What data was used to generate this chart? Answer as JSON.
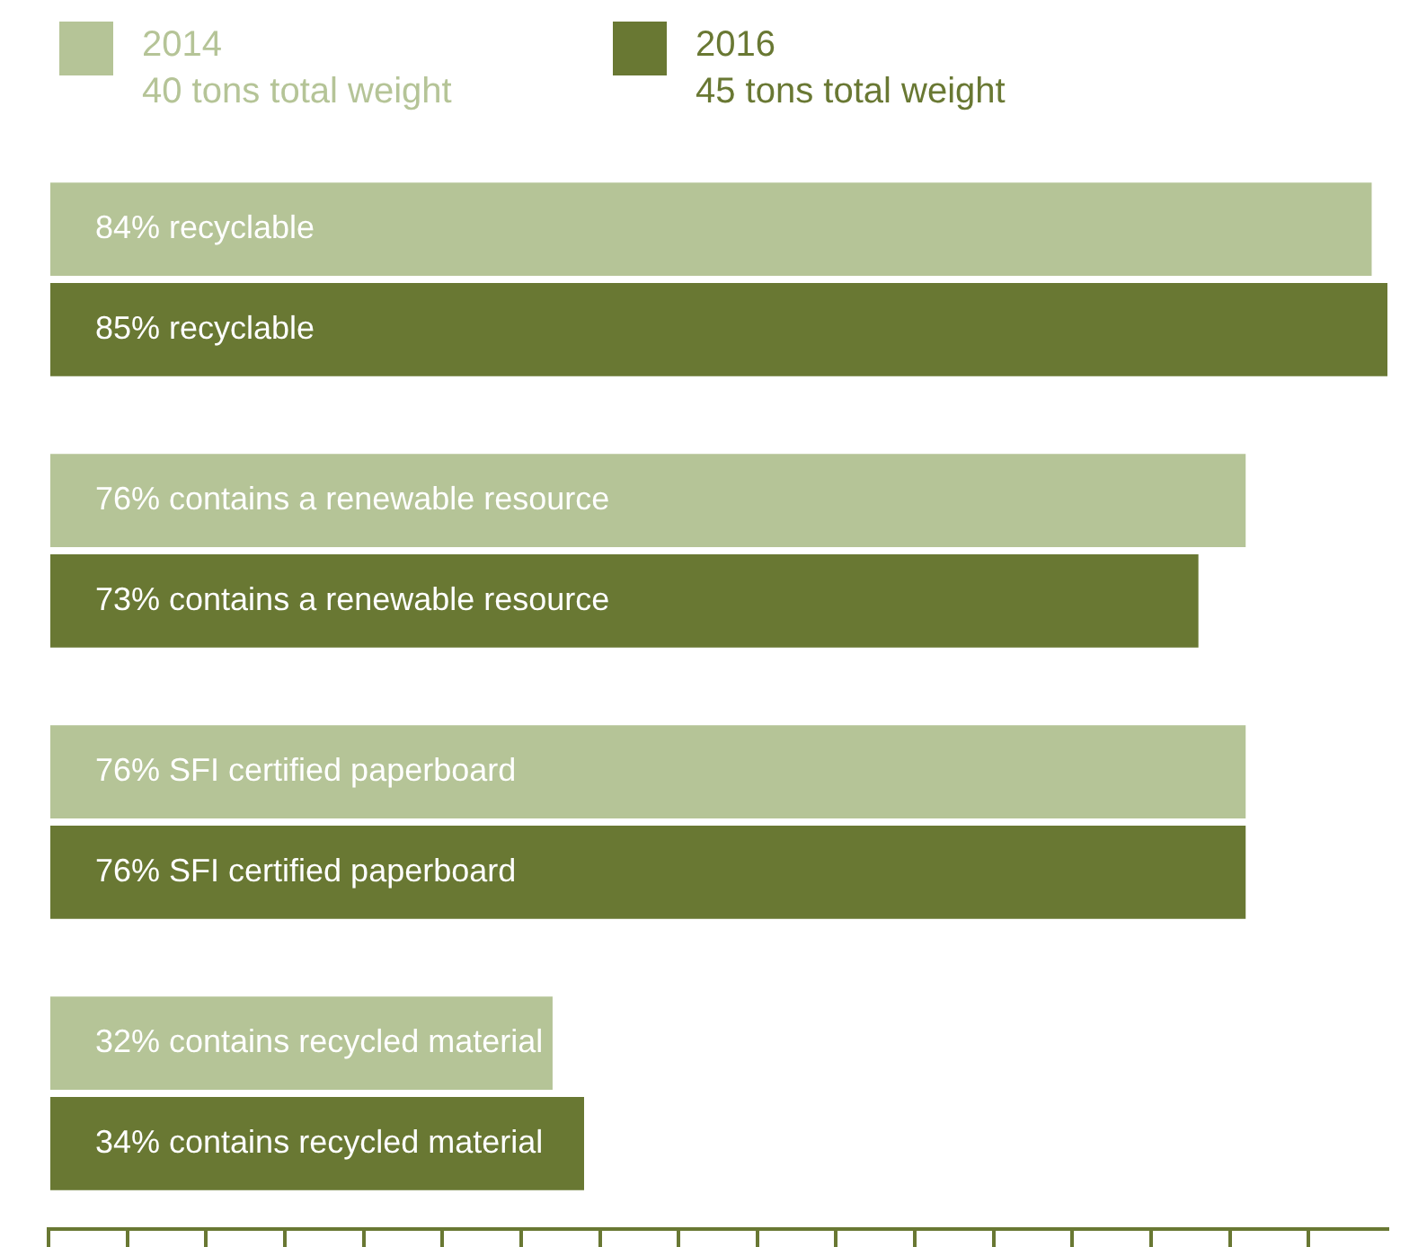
{
  "chart_data": {
    "type": "bar",
    "orientation": "horizontal",
    "categories": [
      null,
      null,
      null,
      null
    ],
    "series": [
      {
        "name": "2014",
        "color": "#b5c497",
        "values": [
          84,
          76,
          76,
          32
        ],
        "value_labels": [
          "84% recyclable",
          "76% contains a renewable resource",
          "76% SFI certified paperboard",
          "32% contains recycled material"
        ]
      },
      {
        "name": "2016",
        "color": "#697833",
        "values": [
          85,
          73,
          76,
          34
        ],
        "value_labels": [
          "85% recyclable",
          "73% contains a renewable resource",
          "76% SFI certified paperboard",
          "34% contains recycled material"
        ]
      }
    ],
    "annotations": [
      "40 tons total weight",
      "45 tons total weight"
    ],
    "xlim": [
      0,
      85
    ],
    "xticks": [
      {
        "value": 0,
        "label": null
      },
      {
        "value": 5,
        "label": null
      },
      {
        "value": 10,
        "label": null
      },
      {
        "value": 15,
        "label": null
      },
      {
        "value": 20,
        "label": null
      },
      {
        "value": 25,
        "label": null
      },
      {
        "value": 30,
        "label": null
      },
      {
        "value": 35,
        "label": null
      },
      {
        "value": 40,
        "label": null
      },
      {
        "value": 45,
        "label": null
      },
      {
        "value": 50,
        "label": null
      },
      {
        "value": 55,
        "label": null
      },
      {
        "value": 60,
        "label": null
      },
      {
        "value": 65,
        "label": null
      },
      {
        "value": 70,
        "label": null
      },
      {
        "value": 75,
        "label": null
      },
      {
        "value": 80,
        "label": null
      }
    ],
    "tick_labels": false,
    "grid": false,
    "legend": "top left"
  }
}
